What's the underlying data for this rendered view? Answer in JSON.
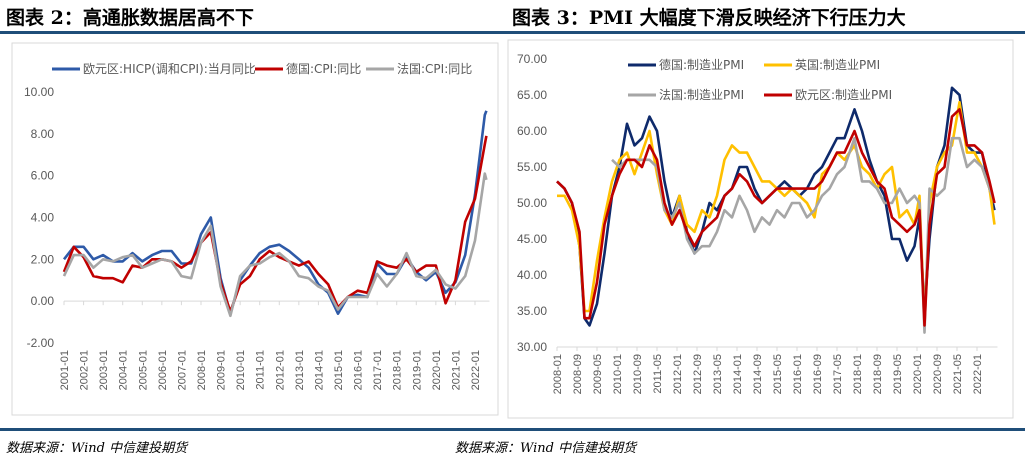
{
  "left_title": "图表 2：高通胀数据居高不下",
  "right_title": "图表 3：PMI 大幅度下滑反映经济下行压力大",
  "left_source": "数据来源：Wind  中信建投期货",
  "right_source": "数据来源：Wind  中信建投期货",
  "colors": {
    "rule": "#1f4e79",
    "blue": "#2e5aa8",
    "navy": "#0e2a6b",
    "red": "#c00000",
    "gray": "#a6a6a6",
    "yellow": "#ffc000"
  },
  "chart_data": [
    {
      "type": "line",
      "ylim": [
        -2,
        10
      ],
      "yticks": [
        "-2.00",
        "0.00",
        "2.00",
        "4.00",
        "6.00",
        "8.00",
        "10.00"
      ],
      "xticks": [
        "2001-01",
        "2002-01",
        "2003-01",
        "2004-01",
        "2005-01",
        "2006-01",
        "2007-01",
        "2008-01",
        "2009-01",
        "2010-01",
        "2011-01",
        "2012-01",
        "2013-01",
        "2014-01",
        "2015-01",
        "2016-01",
        "2017-01",
        "2018-01",
        "2019-01",
        "2020-01",
        "2021-01",
        "2022-01"
      ],
      "legend": "top",
      "x": [
        "2001-01",
        "2001-07",
        "2002-01",
        "2002-07",
        "2003-01",
        "2003-07",
        "2004-01",
        "2004-07",
        "2005-01",
        "2005-07",
        "2006-01",
        "2006-07",
        "2007-01",
        "2007-07",
        "2008-01",
        "2008-07",
        "2009-01",
        "2009-07",
        "2010-01",
        "2010-07",
        "2011-01",
        "2011-07",
        "2012-01",
        "2012-07",
        "2013-01",
        "2013-07",
        "2014-01",
        "2014-07",
        "2015-01",
        "2015-07",
        "2016-01",
        "2016-07",
        "2017-01",
        "2017-07",
        "2018-01",
        "2018-07",
        "2019-01",
        "2019-07",
        "2020-01",
        "2020-07",
        "2021-01",
        "2021-07",
        "2022-01",
        "2022-07",
        "2022-08"
      ],
      "series": [
        {
          "name": "欧元区:HICP(调和CPI):当月同比",
          "color": "#2e5aa8",
          "values": [
            2.0,
            2.6,
            2.6,
            2.0,
            2.2,
            1.9,
            1.9,
            2.3,
            1.9,
            2.2,
            2.4,
            2.4,
            1.8,
            1.8,
            3.2,
            4.0,
            1.1,
            -0.6,
            1.0,
            1.7,
            2.3,
            2.6,
            2.7,
            2.4,
            2.0,
            1.6,
            0.8,
            0.4,
            -0.6,
            0.2,
            0.3,
            0.2,
            1.8,
            1.3,
            1.3,
            2.1,
            1.4,
            1.0,
            1.4,
            0.4,
            0.9,
            2.2,
            5.1,
            8.9,
            9.1
          ]
        },
        {
          "name": "德国:CPI:同比",
          "color": "#c00000",
          "values": [
            1.4,
            2.6,
            2.1,
            1.2,
            1.1,
            1.1,
            0.9,
            1.7,
            1.6,
            2.0,
            2.0,
            1.9,
            1.6,
            1.9,
            2.8,
            3.3,
            0.9,
            -0.5,
            0.8,
            1.2,
            2.0,
            2.4,
            2.1,
            1.9,
            1.7,
            1.9,
            1.3,
            0.8,
            -0.3,
            0.2,
            0.5,
            0.4,
            1.9,
            1.7,
            1.6,
            2.0,
            1.4,
            1.7,
            1.7,
            -0.1,
            1.0,
            3.8,
            4.9,
            7.5,
            7.9
          ]
        },
        {
          "name": "法国:CPI:同比",
          "color": "#a6a6a6",
          "values": [
            1.2,
            2.2,
            2.2,
            1.6,
            2.0,
            1.9,
            2.1,
            2.2,
            1.6,
            1.8,
            2.0,
            1.9,
            1.2,
            1.1,
            2.8,
            3.6,
            0.7,
            -0.7,
            1.2,
            1.7,
            1.8,
            2.1,
            2.3,
            1.9,
            1.2,
            1.1,
            0.7,
            0.5,
            -0.4,
            0.2,
            0.2,
            0.2,
            1.3,
            0.7,
            1.3,
            2.3,
            1.2,
            1.1,
            1.5,
            0.8,
            0.6,
            1.2,
            2.9,
            6.1,
            5.8
          ]
        }
      ]
    },
    {
      "type": "line",
      "ylim": [
        30,
        70
      ],
      "yticks": [
        "30.00",
        "35.00",
        "40.00",
        "45.00",
        "50.00",
        "55.00",
        "60.00",
        "65.00",
        "70.00"
      ],
      "xticks": [
        "2008-01",
        "2008-09",
        "2009-05",
        "2010-01",
        "2010-09",
        "2011-05",
        "2012-01",
        "2012-09",
        "2013-05",
        "2014-01",
        "2014-09",
        "2015-05",
        "2016-01",
        "2016-09",
        "2017-05",
        "2018-01",
        "2018-09",
        "2019-05",
        "2020-01",
        "2020-09",
        "2021-05",
        "2022-01"
      ],
      "legend": "top",
      "x": [
        "2008-01",
        "2008-04",
        "2008-07",
        "2008-10",
        "2008-12",
        "2009-02",
        "2009-05",
        "2009-08",
        "2009-11",
        "2010-02",
        "2010-05",
        "2010-08",
        "2010-11",
        "2011-02",
        "2011-05",
        "2011-08",
        "2011-11",
        "2012-02",
        "2012-05",
        "2012-08",
        "2012-11",
        "2013-02",
        "2013-05",
        "2013-08",
        "2013-11",
        "2014-02",
        "2014-05",
        "2014-08",
        "2014-11",
        "2015-02",
        "2015-05",
        "2015-08",
        "2015-11",
        "2016-02",
        "2016-05",
        "2016-08",
        "2016-11",
        "2017-02",
        "2017-05",
        "2017-08",
        "2017-12",
        "2018-03",
        "2018-06",
        "2018-09",
        "2018-12",
        "2019-03",
        "2019-06",
        "2019-09",
        "2019-12",
        "2020-02",
        "2020-04",
        "2020-06",
        "2020-09",
        "2020-12",
        "2021-03",
        "2021-06",
        "2021-09",
        "2021-12",
        "2022-03",
        "2022-06",
        "2022-08"
      ],
      "series": [
        {
          "name": "德国:制造业PMI",
          "color": "#0e2a6b",
          "values": [
            53,
            52,
            50,
            44,
            34,
            33,
            36,
            43,
            51,
            55,
            61,
            58,
            59,
            62,
            60,
            53,
            48,
            51,
            46,
            43,
            46,
            50,
            49,
            51,
            52,
            55,
            55,
            52,
            50,
            51,
            52,
            53,
            52,
            51,
            52,
            54,
            55,
            57,
            59,
            59,
            63,
            60,
            56,
            53,
            51,
            45,
            45,
            42,
            44,
            48,
            35,
            45,
            55,
            58,
            66,
            65,
            58,
            57,
            57,
            52,
            49
          ]
        },
        {
          "name": "英国:制造业PMI",
          "color": "#ffc000",
          "values": [
            51,
            51,
            49,
            44,
            35,
            35,
            42,
            48,
            53,
            56,
            57,
            54,
            57,
            60,
            54,
            49,
            47,
            51,
            47,
            46,
            49,
            48,
            51,
            56,
            58,
            57,
            57,
            55,
            53,
            53,
            52,
            51,
            52,
            51,
            50,
            48,
            54,
            55,
            57,
            56,
            58,
            55,
            54,
            52,
            54,
            55,
            48,
            49,
            47,
            51,
            33,
            50,
            55,
            57,
            58,
            64,
            57,
            57,
            55,
            52,
            47
          ]
        },
        {
          "name": "法国:制造业PMI",
          "color": "#a6a6a6",
          "values": [
            null,
            null,
            null,
            null,
            null,
            null,
            null,
            null,
            56,
            55,
            56,
            56,
            56,
            56,
            55,
            49,
            48,
            50,
            45,
            43,
            44,
            44,
            46,
            49,
            48,
            51,
            49,
            46,
            48,
            47,
            49,
            48,
            50,
            50,
            48,
            49,
            51,
            52,
            54,
            55,
            59,
            53,
            53,
            52,
            50,
            50,
            52,
            50,
            51,
            50,
            32,
            52,
            51,
            52,
            59,
            59,
            55,
            56,
            55,
            52,
            50
          ]
        },
        {
          "name": "欧元区:制造业PMI",
          "color": "#c00000",
          "values": [
            53,
            52,
            50,
            46,
            34,
            34,
            39,
            47,
            51,
            54,
            56,
            56,
            55,
            58,
            56,
            50,
            47,
            49,
            46,
            44,
            46,
            47,
            48,
            51,
            52,
            54,
            53,
            51,
            50,
            51,
            52,
            52,
            52,
            52,
            52,
            52,
            53,
            55,
            57,
            57,
            60,
            57,
            55,
            53,
            52,
            48,
            47,
            46,
            47,
            49,
            33,
            47,
            54,
            55,
            62,
            63,
            58,
            58,
            57,
            53,
            50
          ]
        }
      ]
    }
  ]
}
